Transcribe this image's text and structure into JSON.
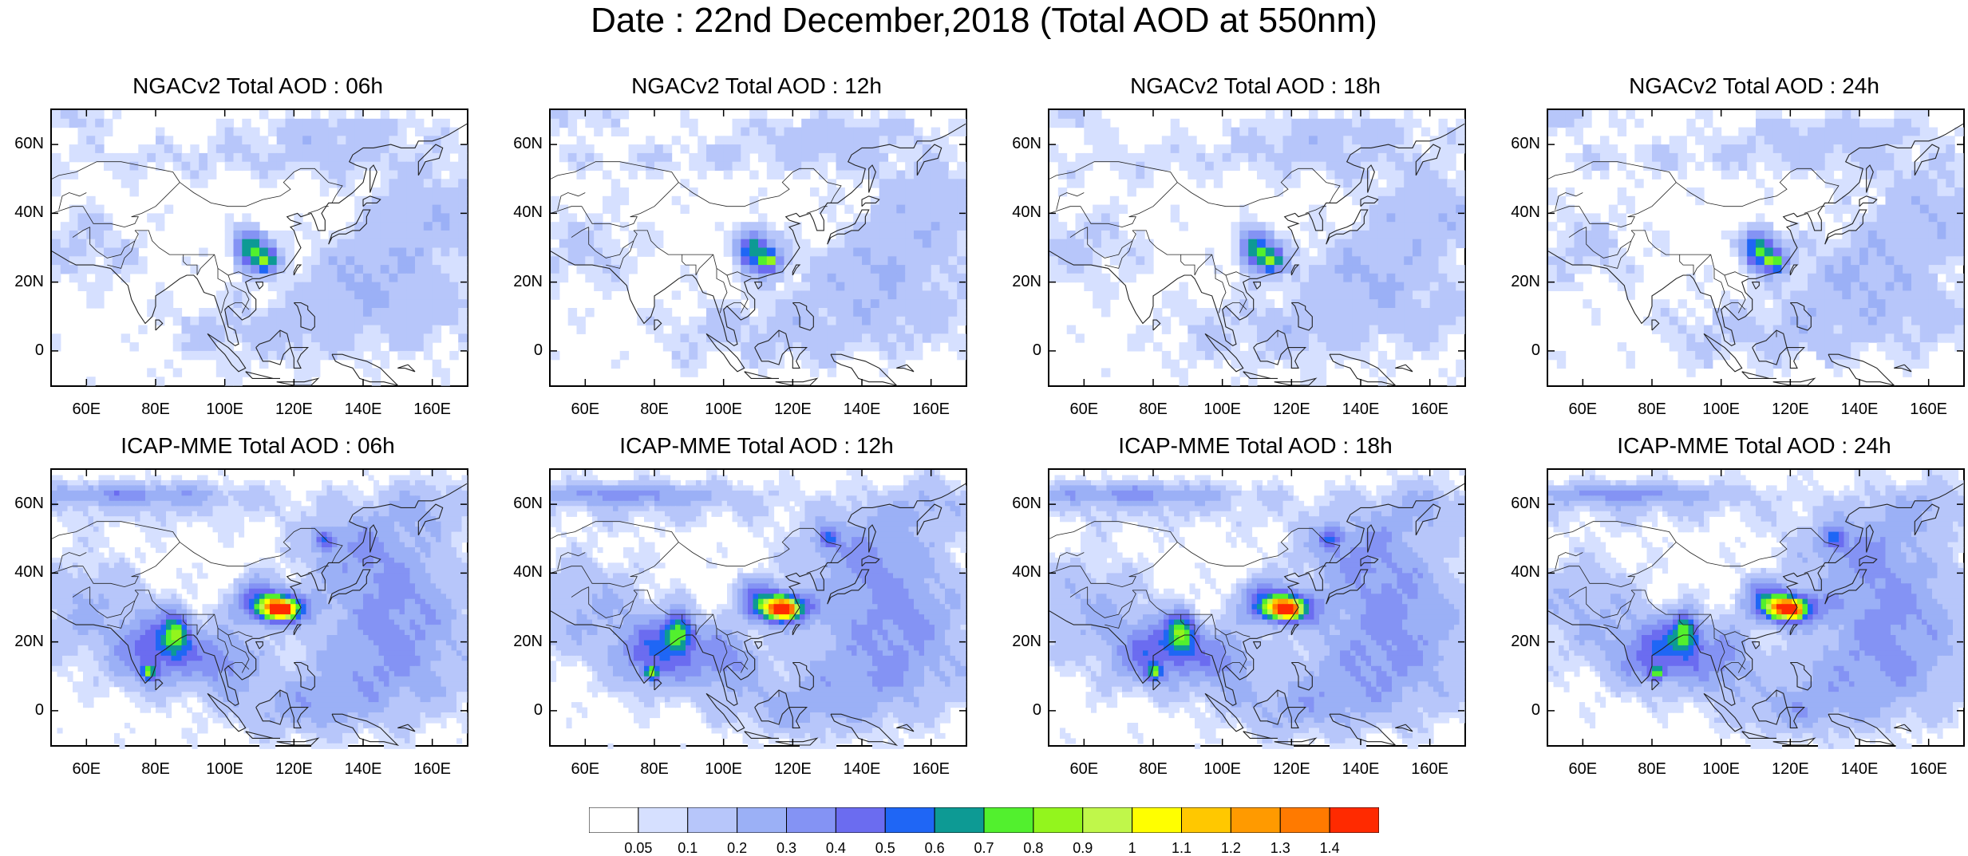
{
  "title": "Date : 22nd December,2018 (Total AOD at 550nm)",
  "panels": [
    {
      "title": "NGACv2 Total AOD : 06h"
    },
    {
      "title": "NGACv2 Total AOD : 12h"
    },
    {
      "title": "NGACv2 Total AOD : 18h"
    },
    {
      "title": "NGACv2 Total AOD : 24h"
    },
    {
      "title": "ICAP-MME Total AOD : 06h"
    },
    {
      "title": "ICAP-MME Total AOD : 12h"
    },
    {
      "title": "ICAP-MME Total AOD : 18h"
    },
    {
      "title": "ICAP-MME Total AOD : 24h"
    }
  ],
  "lat_ticks": [
    "60N",
    "40N",
    "20N",
    "0"
  ],
  "lon_ticks": [
    "60E",
    "80E",
    "100E",
    "120E",
    "140E",
    "160E"
  ],
  "colorbar": {
    "labels": [
      "0.05",
      "0.1",
      "0.2",
      "0.3",
      "0.4",
      "0.5",
      "0.6",
      "0.7",
      "0.8",
      "0.9",
      "1",
      "1.1",
      "1.2",
      "1.3",
      "1.4"
    ],
    "colors": [
      "#ffffff",
      "#d6e0ff",
      "#b7c6fa",
      "#9bb0f6",
      "#8493f4",
      "#6b6cf0",
      "#1f66f5",
      "#0d9a94",
      "#52f02e",
      "#93f51d",
      "#c0f74a",
      "#ffff00",
      "#ffc800",
      "#ff9a00",
      "#ff7a00",
      "#ff2a00"
    ]
  }
}
